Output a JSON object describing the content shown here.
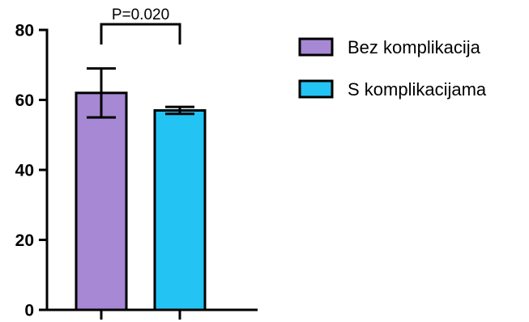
{
  "chart_data": {
    "type": "bar",
    "categories": [
      "Bez komplikacija",
      "S komplikacijama"
    ],
    "values": [
      62,
      57
    ],
    "error": [
      7,
      1
    ],
    "colors": [
      "#a688d4",
      "#23c4f4"
    ],
    "ylim": [
      0,
      80
    ],
    "yticks": [
      0,
      20,
      40,
      60,
      80
    ],
    "ytick_labels": [
      "0",
      "20",
      "40",
      "60",
      "80"
    ],
    "grid": false,
    "legend": {
      "position": "top-right",
      "entries": [
        {
          "label": "Bez komplikacija",
          "color": "#a688d4"
        },
        {
          "label": "S komplikacijama",
          "color": "#23c4f4"
        }
      ]
    },
    "annotation": {
      "text": "P=0.020",
      "between": [
        0,
        1
      ]
    }
  }
}
